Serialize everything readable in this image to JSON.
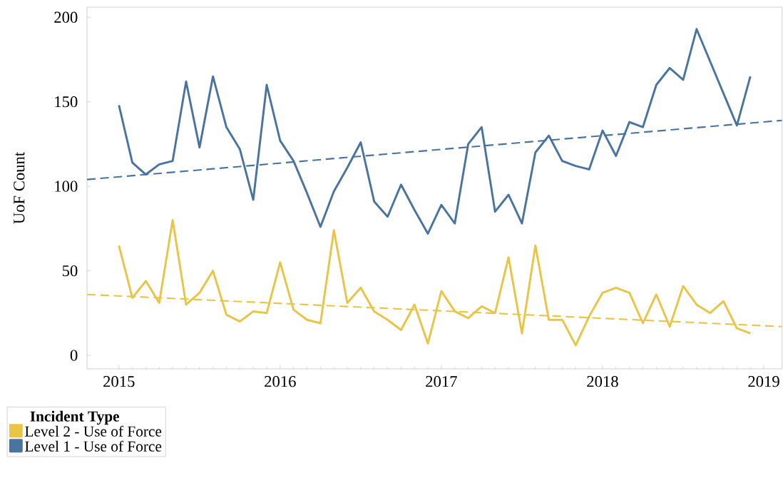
{
  "chart_data": {
    "type": "line",
    "ylabel": "UoF Count",
    "legend_title": "Incident Type",
    "legend": "bottom left",
    "x": [
      "2015-01",
      "2015-02",
      "2015-03",
      "2015-04",
      "2015-05",
      "2015-06",
      "2015-07",
      "2015-08",
      "2015-09",
      "2015-10",
      "2015-11",
      "2015-12",
      "2016-01",
      "2016-02",
      "2016-03",
      "2016-04",
      "2016-05",
      "2016-06",
      "2016-07",
      "2016-08",
      "2016-09",
      "2016-10",
      "2016-11",
      "2016-12",
      "2017-01",
      "2017-02",
      "2017-03",
      "2017-04",
      "2017-05",
      "2017-06",
      "2017-07",
      "2017-08",
      "2017-09",
      "2017-10",
      "2017-11",
      "2017-12",
      "2018-01",
      "2018-02",
      "2018-03",
      "2018-04",
      "2018-05",
      "2018-06",
      "2018-07",
      "2018-08",
      "2018-09",
      "2018-10",
      "2018-11",
      "2018-12"
    ],
    "series": [
      {
        "name": "Level 2 - Use of Force",
        "color": "#e8c547",
        "values": [
          65,
          34,
          44,
          31,
          80,
          30,
          37,
          50,
          24,
          20,
          26,
          25,
          55,
          27,
          21,
          19,
          74,
          31,
          40,
          26,
          21,
          15,
          30,
          7,
          38,
          26,
          22,
          29,
          25,
          58,
          13,
          65,
          21,
          21,
          6,
          23,
          37,
          40,
          37,
          19,
          36,
          17,
          41,
          30,
          25,
          32,
          16,
          13
        ]
      },
      {
        "name": "Level 1 - Use of Force",
        "color": "#4a74a0",
        "values": [
          148,
          114,
          107,
          113,
          115,
          162,
          123,
          165,
          135,
          122,
          92,
          160,
          127,
          115,
          96,
          76,
          97,
          111,
          126,
          91,
          82,
          101,
          86,
          72,
          89,
          78,
          125,
          135,
          85,
          95,
          78,
          120,
          130,
          115,
          112,
          110,
          133,
          118,
          138,
          135,
          160,
          170,
          163,
          193,
          174,
          155,
          136,
          165
        ]
      },
      {
        "type": "line",
        "line_style": "dashed",
        "color": "#e8c547",
        "x": [
          "2014-10-20",
          "2019-02-12"
        ],
        "values": [
          36,
          17
        ]
      },
      {
        "type": "line",
        "line_style": "dashed",
        "color": "#4a74a0",
        "x": [
          "2014-10-20",
          "2019-02-12"
        ],
        "values": [
          104,
          139
        ]
      }
    ],
    "line_style": "solid",
    "xlim": [
      "2014-10-20",
      "2019-02-12"
    ],
    "xticks": [
      "2015",
      "2016",
      "2017",
      "2018",
      "2019"
    ],
    "ylim": [
      -8,
      206
    ],
    "yticks": [
      0,
      50,
      100,
      150,
      200
    ],
    "grid": false
  }
}
